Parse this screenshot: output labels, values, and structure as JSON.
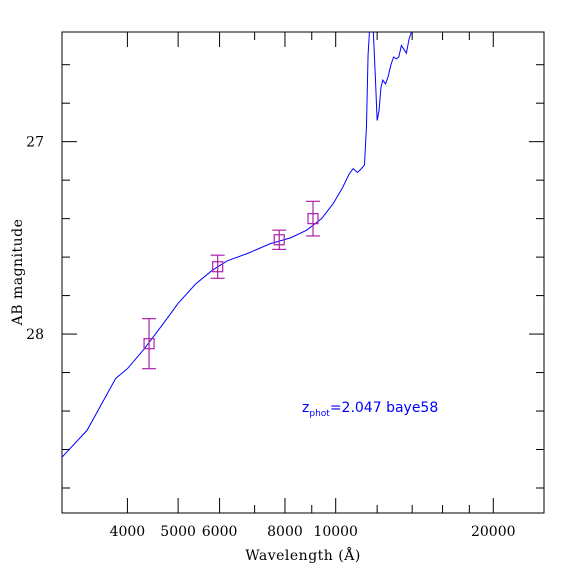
{
  "chart_data": {
    "type": "line",
    "xlabel": "Wavelength (Å)",
    "ylabel": "AB magnitude",
    "x_scale": "log",
    "xlim": [
      3000,
      25000
    ],
    "ylim": [
      28.93,
      26.43
    ],
    "y_inverted": true,
    "grid": false,
    "x_tick_labels": [
      "4000",
      "5000",
      "6000",
      "8000",
      "10000",
      "20000"
    ],
    "x_major_ticks": [
      4000,
      5000,
      6000,
      8000,
      10000,
      20000
    ],
    "x_minor_ticks": [
      3000,
      7000,
      9000,
      12000,
      14000,
      16000,
      18000
    ],
    "y_tick_labels": [
      "27",
      "28"
    ],
    "y_major_ticks": [
      27,
      28
    ],
    "y_minor_ticks": [
      26.6,
      26.8,
      27.2,
      27.4,
      27.6,
      27.8,
      28.2,
      28.4,
      28.6,
      28.8
    ],
    "annotation": {
      "z_base": "z",
      "z_sub": "phot",
      "z_value": "=2.047 baye58",
      "color": "#0000ff"
    },
    "series": [
      {
        "kind": "sed_model",
        "color": "#0000ff",
        "points": [
          [
            3000,
            28.64
          ],
          [
            3350,
            28.5
          ],
          [
            3800,
            28.23
          ],
          [
            4000,
            28.18
          ],
          [
            4300,
            28.08
          ],
          [
            4700,
            27.94
          ],
          [
            5000,
            27.84
          ],
          [
            5400,
            27.74
          ],
          [
            5800,
            27.67
          ],
          [
            6200,
            27.62
          ],
          [
            6800,
            27.58
          ],
          [
            7500,
            27.53
          ],
          [
            8200,
            27.5
          ],
          [
            8800,
            27.46
          ],
          [
            9400,
            27.4
          ],
          [
            9900,
            27.32
          ],
          [
            10300,
            27.24
          ],
          [
            10600,
            27.17
          ],
          [
            10800,
            27.14
          ],
          [
            11000,
            27.16
          ],
          [
            11200,
            27.14
          ],
          [
            11350,
            27.12
          ],
          [
            11450,
            26.92
          ],
          [
            11530,
            26.55
          ],
          [
            11600,
            26.43
          ]
        ]
      },
      {
        "kind": "sed_model_ir",
        "color": "#0000ff",
        "points": [
          [
            11800,
            26.43
          ],
          [
            11900,
            26.65
          ],
          [
            12000,
            26.89
          ],
          [
            12100,
            26.84
          ],
          [
            12200,
            26.72
          ],
          [
            12300,
            26.68
          ],
          [
            12450,
            26.7
          ],
          [
            12600,
            26.66
          ],
          [
            12750,
            26.6
          ],
          [
            12900,
            26.56
          ],
          [
            13050,
            26.57
          ],
          [
            13200,
            26.56
          ],
          [
            13350,
            26.5
          ],
          [
            13500,
            26.52
          ],
          [
            13650,
            26.54
          ],
          [
            13800,
            26.47
          ],
          [
            13950,
            26.43
          ]
        ]
      }
    ],
    "observations": {
      "color": "#aa22aa",
      "points": [
        {
          "x": 4400,
          "y": 28.05,
          "err": 0.13
        },
        {
          "x": 5950,
          "y": 27.65,
          "err": 0.06
        },
        {
          "x": 7800,
          "y": 27.51,
          "err": 0.05
        },
        {
          "x": 9050,
          "y": 27.4,
          "err": 0.09
        }
      ]
    }
  }
}
